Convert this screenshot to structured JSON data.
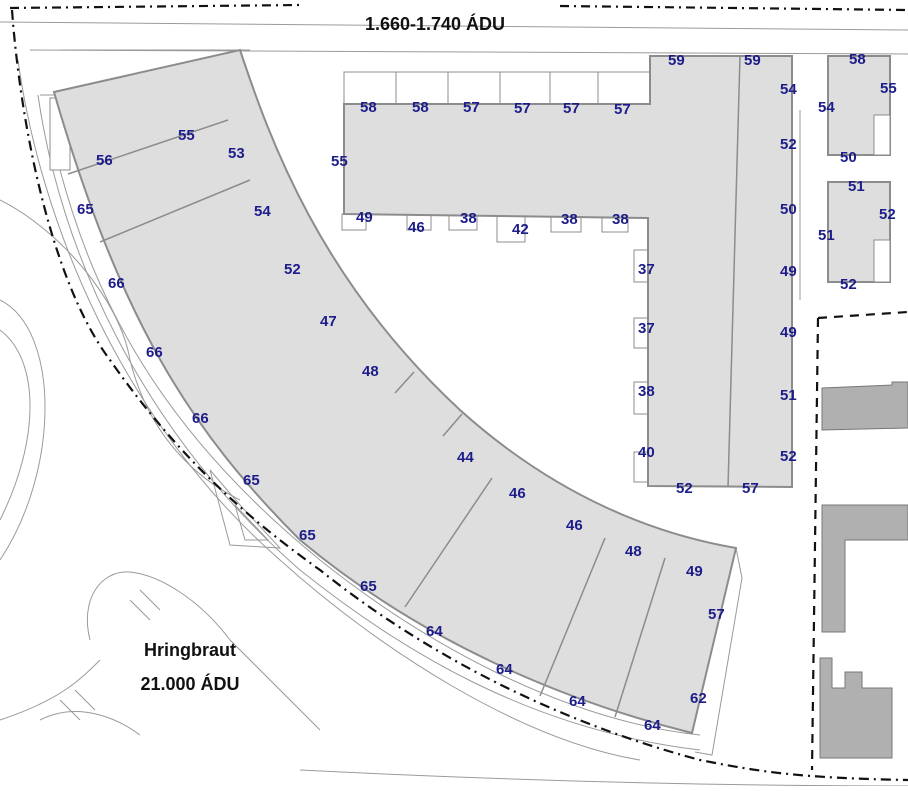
{
  "top_road": {
    "traffic": "1.660-1.740 ÁDU"
  },
  "hringbraut": {
    "name": "Hringbraut",
    "traffic": "21.000 ÁDU"
  },
  "colors": {
    "building_fill": "#dedede",
    "building_stroke": "#8c8c8c",
    "neighbor_fill": "#b0b0b0",
    "label_color": "#1c1c8a"
  },
  "noise_levels": {
    "curved_building": [
      "56",
      "55",
      "53",
      "65",
      "54",
      "66",
      "52",
      "47",
      "66",
      "48",
      "66",
      "44",
      "65",
      "46",
      "65",
      "46",
      "48",
      "65",
      "49",
      "64",
      "57",
      "64",
      "62",
      "64",
      "64"
    ],
    "l_building": [
      "59",
      "59",
      "54",
      "58",
      "58",
      "57",
      "57",
      "57",
      "57",
      "55",
      "52",
      "49",
      "46",
      "38",
      "42",
      "38",
      "38",
      "50",
      "37",
      "49",
      "37",
      "49",
      "38",
      "51",
      "40",
      "52",
      "52",
      "57"
    ],
    "small_building_north": [
      "58",
      "55",
      "54",
      "50"
    ],
    "small_building_south": [
      "51",
      "52",
      "51",
      "52"
    ]
  }
}
